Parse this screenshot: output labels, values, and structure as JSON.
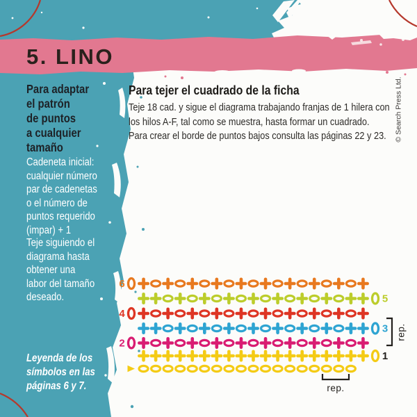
{
  "banner": {
    "title": "5. LINO"
  },
  "sidebar": {
    "heading": "Para adaptar\nel patrón\nde puntos\na cualquier\ntamaño",
    "para1": "Cadeneta inicial:\ncualquier número\npar de cadenetas\no el número de\npuntos requerido\n(impar) + 1",
    "para2": "Teje siguiendo el\ndiagrama hasta\nobtener una\nlabor del tamaño\ndeseado.",
    "legend_note": "Leyenda de los\nsímbolos en las\npáginas 6 y 7."
  },
  "main": {
    "heading": "Para tejer el cuadrado de la ficha",
    "para1": "Teje 18 cad. y sigue el diagrama trabajando franjas de 1 hilera con\nlos hilos A-F, tal como se muestra, hasta formar un cuadrado.",
    "para2": "Para crear el borde de puntos bajos consulta las páginas 22 y 23."
  },
  "copyright": "© Search Press Ltd.",
  "colors": {
    "teal": "#4BA2B4",
    "pink": "#E27890",
    "arc_red": "#B5382C",
    "ink": "#23201D"
  },
  "diagram": {
    "palette": {
      "orange": "#E8791F",
      "lime": "#BCCD2B",
      "red": "#DE3524",
      "cyan": "#2EA4D2",
      "magenta": "#D91C72",
      "yellow": "#F4CB15",
      "ink": "#23201D"
    },
    "rows": [
      {
        "label": "6",
        "label_side": "left",
        "color": "orange",
        "symbols": "0+o+o+o+o+o+o+o+o+o+"
      },
      {
        "label": "5",
        "label_side": "right",
        "color": "lime",
        "symbols": "++o+o+o+o+o+o+o+o++0"
      },
      {
        "label": "4",
        "label_side": "left",
        "color": "red",
        "symbols": "0+o+o+o+o+o+o+o+o+o+"
      },
      {
        "label": "3",
        "label_side": "right",
        "color": "cyan",
        "symbols": "++o+o+o+o+o+o+o+o++0"
      },
      {
        "label": "2",
        "label_side": "left",
        "color": "magenta",
        "symbols": "0+o+o+o+o+o+o+o+o+o+"
      },
      {
        "label": "1",
        "label_side": "right",
        "label_color": "ink",
        "color": "yellow",
        "symbols": "+++++++++++++++++++0"
      },
      {
        "label": "",
        "label_side": "none",
        "color": "yellow",
        "symbols": ">oooooooooooooooooo"
      }
    ],
    "row_rep_label": "rep.",
    "foundation_rep_label": "rep."
  }
}
